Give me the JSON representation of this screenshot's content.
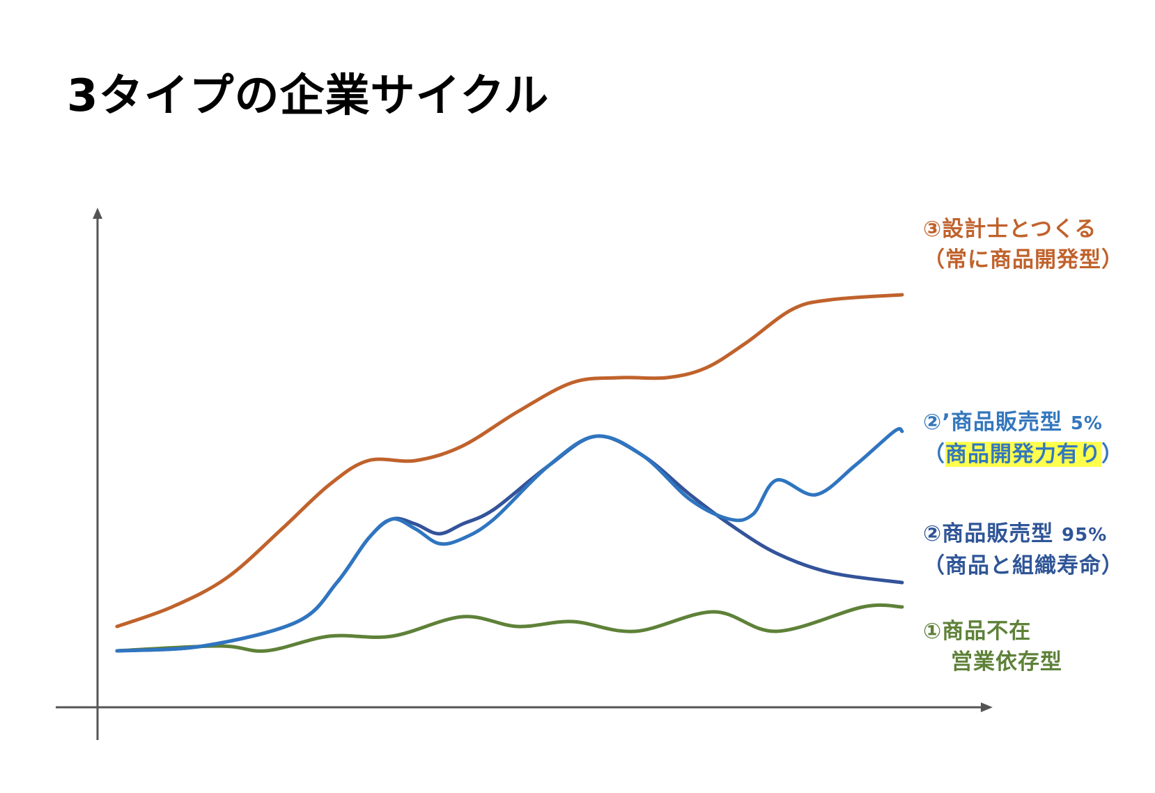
{
  "title": "3タイプの企業サイクル",
  "colors": {
    "type3": "#C0622C",
    "type2_dash": "#2F75C0",
    "type2": "#33539A",
    "type1": "#5E8138",
    "highlight": "#FFFF4D",
    "axis": "#555555"
  },
  "labels": {
    "type3": {
      "line1": "③設計士とつくる",
      "line2": "（常に商品開発型）"
    },
    "type2_dash": {
      "line1_prefix": "②’商品販売型",
      "line1_pct": "5%",
      "line2_open": "（",
      "line2_highlight": "商品開発力有り",
      "line2_close": "）"
    },
    "type2": {
      "line1_prefix": "②商品販売型",
      "line1_pct": "95%",
      "line2": "（商品と組織寿命）"
    },
    "type1": {
      "line1": "①商品不在",
      "line2": "営業依存型"
    }
  },
  "chart_data": {
    "type": "line",
    "title": "3タイプの企業サイクル",
    "xlabel": "",
    "ylabel": "",
    "xlim": [
      0,
      100
    ],
    "ylim": [
      0,
      100
    ],
    "grid": false,
    "legend": "right (inline labels at line ends)",
    "series": [
      {
        "name": "③設計士とつくる（常に商品開発型）",
        "key": "type3",
        "x": [
          0,
          7,
          14,
          21,
          27,
          32,
          38,
          44,
          51,
          58,
          64,
          70,
          75,
          80,
          86,
          91,
          100
        ],
        "y": [
          13,
          17,
          23,
          33,
          42,
          47,
          47,
          50,
          57,
          63,
          64,
          64,
          66,
          71,
          78,
          80,
          81
        ]
      },
      {
        "name": "②’商品販売型 5%（商品開発力有り）",
        "key": "type2_dash",
        "x": [
          0,
          11,
          23,
          28,
          32,
          35,
          38,
          41,
          44,
          48,
          55,
          61,
          67,
          73,
          78,
          81,
          84,
          89,
          94,
          99,
          100
        ],
        "y": [
          8,
          9,
          14,
          22,
          31,
          35,
          33,
          30,
          31,
          35,
          46,
          52,
          48,
          39,
          35,
          36,
          43,
          40,
          46,
          53,
          53
        ]
      },
      {
        "name": "②商品販売型 95%（商品と組織寿命）",
        "key": "type2",
        "x": [
          0,
          11,
          23,
          28,
          32,
          35,
          38,
          41,
          44,
          48,
          55,
          61,
          67,
          73,
          78,
          84,
          91,
          100
        ],
        "y": [
          8,
          9,
          14,
          22,
          31,
          35,
          34,
          32,
          34,
          37,
          46,
          52,
          48,
          40,
          34,
          28,
          24,
          22
        ]
      },
      {
        "name": "①商品不在 営業依存型",
        "key": "type1",
        "x": [
          0,
          13,
          19,
          27,
          35,
          44,
          51,
          58,
          66,
          76,
          84,
          95,
          100
        ],
        "y": [
          8,
          9,
          8,
          11,
          11,
          15,
          13,
          14,
          12,
          16,
          12,
          17,
          17
        ]
      }
    ]
  }
}
